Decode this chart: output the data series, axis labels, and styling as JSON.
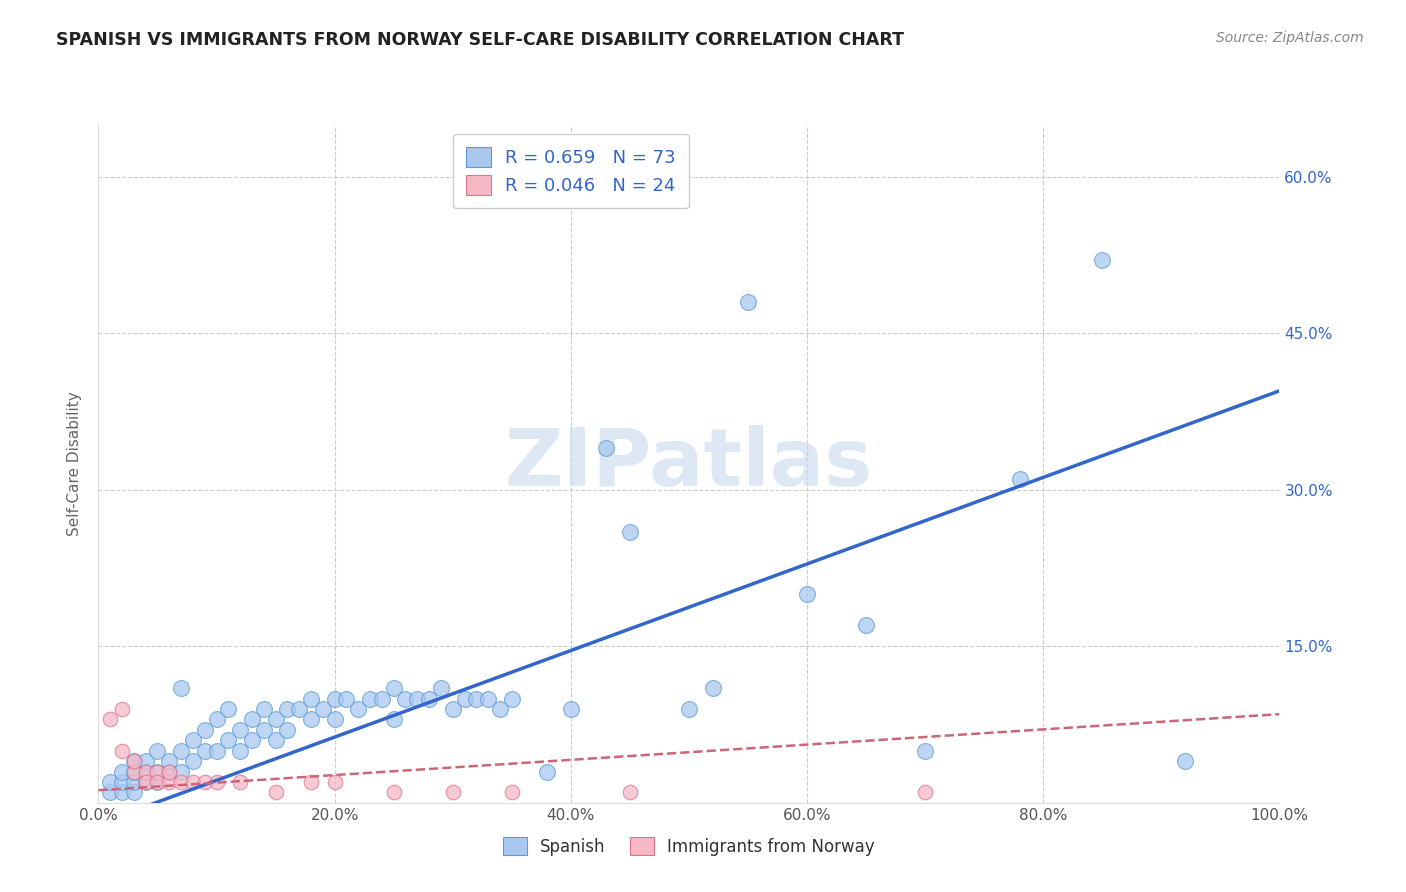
{
  "title": "SPANISH VS IMMIGRANTS FROM NORWAY SELF-CARE DISABILITY CORRELATION CHART",
  "source": "Source: ZipAtlas.com",
  "ylabel": "Self-Care Disability",
  "xlim": [
    0,
    1.0
  ],
  "ylim": [
    0,
    0.65
  ],
  "xtick_labels": [
    "0.0%",
    "20.0%",
    "40.0%",
    "60.0%",
    "80.0%",
    "100.0%"
  ],
  "xtick_vals": [
    0.0,
    0.2,
    0.4,
    0.6,
    0.8,
    1.0
  ],
  "ytick_vals": [
    0.15,
    0.3,
    0.45,
    0.6
  ],
  "right_ytick_labels": [
    "15.0%",
    "30.0%",
    "45.0%",
    "60.0%"
  ],
  "right_ytick_vals": [
    0.15,
    0.3,
    0.45,
    0.6
  ],
  "blue_color": "#A8C8F0",
  "blue_edge": "#5B9BD5",
  "pink_color": "#F5B8C4",
  "pink_edge": "#E07090",
  "line_blue": "#3366CC",
  "line_pink": "#CC6677",
  "R_blue": "0.659",
  "N_blue": "73",
  "R_pink": "0.046",
  "N_pink": "24",
  "legend_label_blue": "Spanish",
  "legend_label_pink": "Immigrants from Norway",
  "watermark": "ZIPatlas",
  "blue_scatter_x": [
    0.01,
    0.01,
    0.02,
    0.02,
    0.02,
    0.03,
    0.03,
    0.03,
    0.03,
    0.04,
    0.04,
    0.04,
    0.05,
    0.05,
    0.05,
    0.06,
    0.06,
    0.07,
    0.07,
    0.07,
    0.08,
    0.08,
    0.09,
    0.09,
    0.1,
    0.1,
    0.11,
    0.11,
    0.12,
    0.12,
    0.13,
    0.13,
    0.14,
    0.14,
    0.15,
    0.15,
    0.16,
    0.16,
    0.17,
    0.18,
    0.18,
    0.19,
    0.2,
    0.2,
    0.21,
    0.22,
    0.23,
    0.24,
    0.25,
    0.25,
    0.26,
    0.27,
    0.28,
    0.29,
    0.3,
    0.31,
    0.32,
    0.33,
    0.34,
    0.35,
    0.38,
    0.4,
    0.43,
    0.45,
    0.5,
    0.52,
    0.55,
    0.6,
    0.65,
    0.7,
    0.78,
    0.85,
    0.92
  ],
  "blue_scatter_y": [
    0.01,
    0.02,
    0.01,
    0.02,
    0.03,
    0.01,
    0.02,
    0.03,
    0.04,
    0.02,
    0.03,
    0.04,
    0.02,
    0.03,
    0.05,
    0.03,
    0.04,
    0.03,
    0.05,
    0.11,
    0.04,
    0.06,
    0.05,
    0.07,
    0.05,
    0.08,
    0.06,
    0.09,
    0.05,
    0.07,
    0.06,
    0.08,
    0.07,
    0.09,
    0.06,
    0.08,
    0.07,
    0.09,
    0.09,
    0.08,
    0.1,
    0.09,
    0.08,
    0.1,
    0.1,
    0.09,
    0.1,
    0.1,
    0.08,
    0.11,
    0.1,
    0.1,
    0.1,
    0.11,
    0.09,
    0.1,
    0.1,
    0.1,
    0.09,
    0.1,
    0.03,
    0.09,
    0.34,
    0.26,
    0.09,
    0.11,
    0.48,
    0.2,
    0.17,
    0.05,
    0.31,
    0.52,
    0.04
  ],
  "pink_scatter_x": [
    0.01,
    0.02,
    0.02,
    0.03,
    0.03,
    0.04,
    0.04,
    0.05,
    0.05,
    0.06,
    0.06,
    0.07,
    0.08,
    0.09,
    0.1,
    0.12,
    0.15,
    0.18,
    0.2,
    0.25,
    0.3,
    0.35,
    0.45,
    0.7
  ],
  "pink_scatter_y": [
    0.08,
    0.09,
    0.05,
    0.03,
    0.04,
    0.03,
    0.02,
    0.03,
    0.02,
    0.02,
    0.03,
    0.02,
    0.02,
    0.02,
    0.02,
    0.02,
    0.01,
    0.02,
    0.02,
    0.01,
    0.01,
    0.01,
    0.01,
    0.01
  ],
  "blue_line_x": [
    0.0,
    1.0
  ],
  "blue_line_y": [
    -0.02,
    0.395
  ],
  "pink_line_x": [
    0.0,
    1.0
  ],
  "pink_line_y": [
    0.012,
    0.085
  ],
  "background_color": "#FFFFFF",
  "grid_color": "#CCCCCC"
}
